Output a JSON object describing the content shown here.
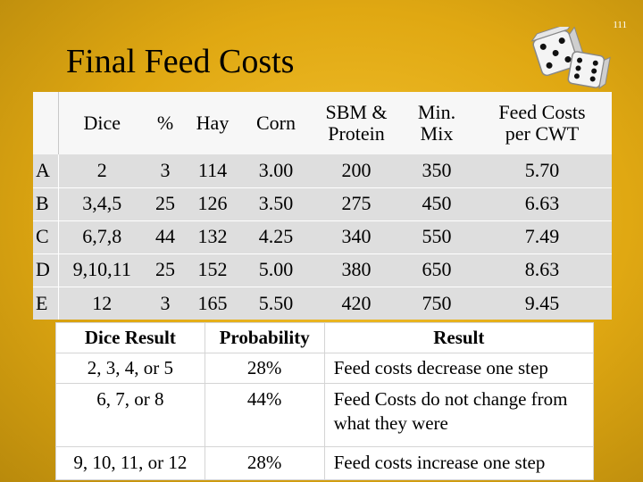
{
  "page_number": "111",
  "title": "Final Feed Costs",
  "feed_table": {
    "headers": [
      "",
      "Dice",
      "%",
      "Hay",
      "Corn",
      "SBM &\nProtein",
      "Min.\nMix",
      "Feed Costs\nper CWT"
    ],
    "rows": [
      [
        "A",
        "2",
        "3",
        "114",
        "3.00",
        "200",
        "350",
        "5.70"
      ],
      [
        "B",
        "3,4,5",
        "25",
        "126",
        "3.50",
        "275",
        "450",
        "6.63"
      ],
      [
        "C",
        "6,7,8",
        "44",
        "132",
        "4.25",
        "340",
        "550",
        "7.49"
      ],
      [
        "D",
        "9,10,11",
        "25",
        "152",
        "5.00",
        "380",
        "650",
        "8.63"
      ],
      [
        "E",
        "12",
        "3",
        "165",
        "5.50",
        "420",
        "750",
        "9.45"
      ]
    ]
  },
  "result_table": {
    "headers": [
      "Dice Result",
      "Probability",
      "Result"
    ],
    "rows": [
      [
        "2, 3, 4, or 5",
        "28%",
        "Feed costs decrease one step"
      ],
      [
        "6, 7, or 8",
        "44%",
        "Feed Costs do not change from what they were"
      ],
      [
        "9, 10, 11, or 12",
        "28%",
        "Feed costs increase one step"
      ]
    ]
  },
  "dice_icon": "dice-pair-icon"
}
